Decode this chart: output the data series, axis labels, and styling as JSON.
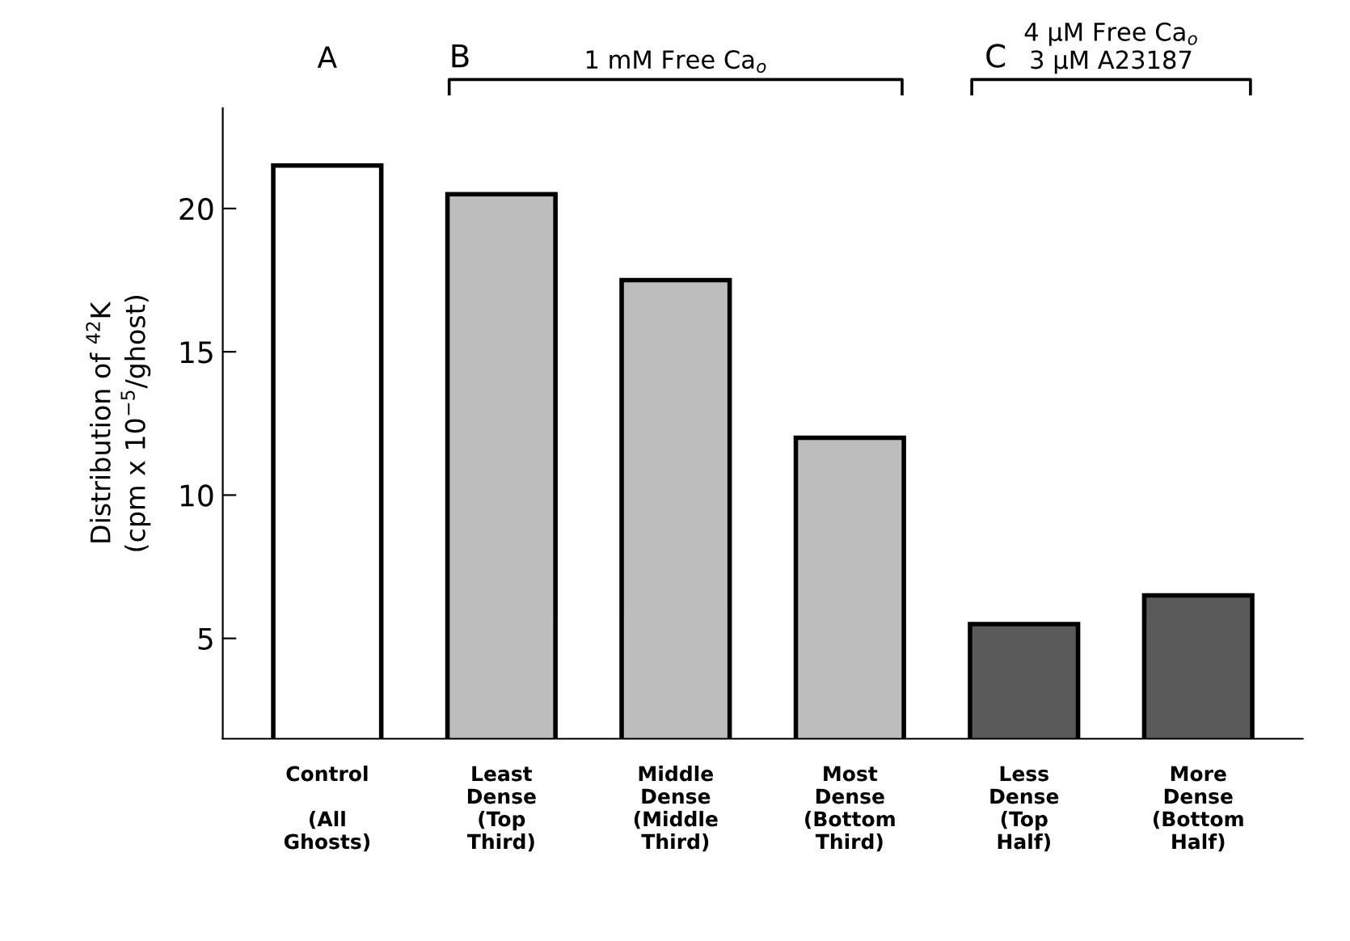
{
  "chart_data": {
    "type": "bar",
    "ylabel": "Distribution of $^{42}$K\n(cpm x 10$^{−5}$/ghost)",
    "categories": [
      "Control\n\n(All\nGhosts)",
      "Least\nDense\n(Top\nThird)",
      "Middle\nDense\n(Middle\nThird)",
      "Most\nDense\n(Bottom\nThird)",
      "Less\nDense\n(Top\nHalf)",
      "More\nDense\n(Bottom\nHalf)"
    ],
    "values": [
      21.5,
      20.5,
      17.5,
      12.0,
      5.5,
      6.5
    ],
    "colors": [
      "#ffffff",
      "#bdbdbd",
      "#bdbdbd",
      "#bdbdbd",
      "#5a5a5a",
      "#5a5a5a"
    ],
    "ylim": [
      1.5,
      23.5
    ],
    "yticks": [
      5,
      10,
      15,
      20
    ],
    "annotations": [
      "A",
      "B",
      "1 mM Free Ca$_{o}$",
      "C",
      "4 μM Free Ca$_{o}$\n3 μM A23187"
    ],
    "grid": false,
    "legend": false
  }
}
